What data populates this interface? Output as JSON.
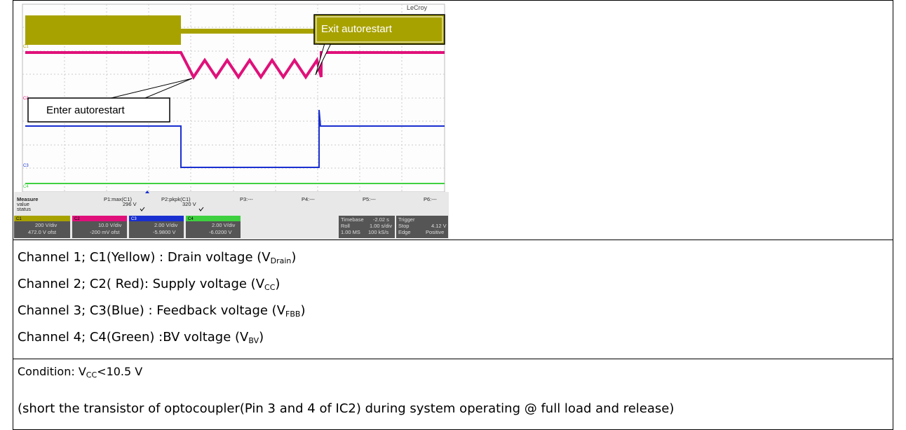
{
  "scope": {
    "brand": "LeCroy",
    "callouts": {
      "exit": "Exit autorestart",
      "enter": "Enter autorestart"
    },
    "trace_labels": [
      "C1",
      "C2",
      "C3",
      "C4"
    ],
    "measure": {
      "labels": [
        "Measure",
        "value",
        "status"
      ],
      "params": [
        {
          "name": "P1:max(C1)",
          "value": "296 V"
        },
        {
          "name": "P2:pkpk(C1)",
          "value": "320 V"
        },
        {
          "name": "P3:---"
        },
        {
          "name": "P4:---"
        },
        {
          "name": "P5:---"
        },
        {
          "name": "P6:---"
        }
      ]
    },
    "channels": [
      {
        "id": "C1",
        "scale": "200 V/div",
        "offset": "472.0 V ofst"
      },
      {
        "id": "C2",
        "scale": "10.0 V/div",
        "offset": "-200 mV ofst"
      },
      {
        "id": "C3",
        "scale": "2.00 V/div",
        "offset": "-5.9800 V"
      },
      {
        "id": "C4",
        "scale": "2.00 V/div",
        "offset": "-6.0200 V"
      }
    ],
    "timebase": {
      "label": "Timebase",
      "delay": "-2.02 s",
      "mode": "Roll",
      "per_div": "1.00 s/div",
      "samples": "1.00 MS",
      "rate": "100 kS/s"
    },
    "trigger": {
      "label": "Trigger",
      "state": "Stop",
      "level": "4.12 V",
      "type": "Edge",
      "slope": "Positive"
    }
  },
  "legend": [
    {
      "text": "Channel 1; C1(Yellow) : Drain voltage (V",
      "sub": "Drain",
      "tail": ")"
    },
    {
      "text": "Channel 2; C2( Red): Supply voltage (V",
      "sub": "CC",
      "tail": ")"
    },
    {
      "text": "Channel 3; C3(Blue) : Feedback voltage (V",
      "sub": "FBB",
      "tail": ")"
    },
    {
      "text": "Channel 4; C4(Green) :BV voltage (V",
      "sub": "BV",
      "tail": ")"
    }
  ],
  "condition": {
    "text": "Condition:  V",
    "sub": "CC",
    "tail": "<10.5 V",
    "note": "(short the transistor of optocoupler(Pin 3 and 4 of IC2)  during system operating @ full load and release)"
  }
}
